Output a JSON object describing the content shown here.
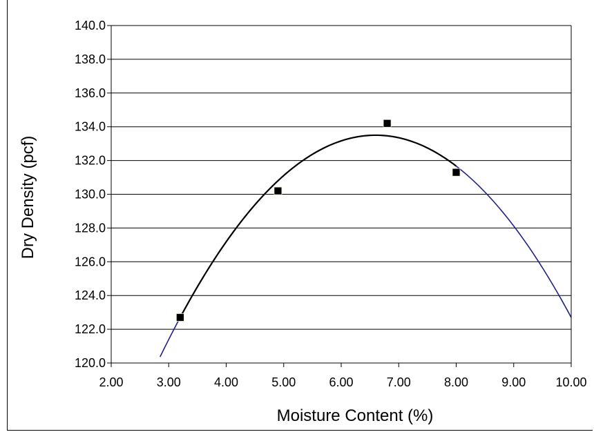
{
  "chart_data": {
    "type": "scatter",
    "title": "",
    "xlabel": "Moisture Content (%)",
    "ylabel": "Dry Density (pcf)",
    "xlim": [
      2.0,
      10.0
    ],
    "ylim": [
      120.0,
      140.0
    ],
    "x_ticks": [
      "2.00",
      "3.00",
      "4.00",
      "5.00",
      "6.00",
      "7.00",
      "8.00",
      "9.00",
      "10.00"
    ],
    "y_ticks": [
      "120.0",
      "122.0",
      "124.0",
      "126.0",
      "128.0",
      "130.0",
      "132.0",
      "134.0",
      "136.0",
      "138.0",
      "140.0"
    ],
    "grid": "horizontal",
    "legend": "none",
    "series": [
      {
        "type": "scatter",
        "marker": "square",
        "color": "#000000",
        "points": [
          {
            "x": 3.2,
            "y": 122.7
          },
          {
            "x": 4.9,
            "y": 130.2
          },
          {
            "x": 6.8,
            "y": 134.2
          },
          {
            "x": 8.0,
            "y": 131.3
          }
        ]
      },
      {
        "type": "line",
        "color": "#1f1f8f",
        "fit": "quadratic",
        "peak_x": 6.6,
        "peak_y": 133.5,
        "x_range": [
          2.85,
          10.0
        ]
      },
      {
        "type": "line",
        "color": "#000000",
        "fit": "quadratic",
        "peak_x": 6.6,
        "peak_y": 133.5,
        "x_range": [
          3.2,
          8.0
        ]
      }
    ]
  }
}
